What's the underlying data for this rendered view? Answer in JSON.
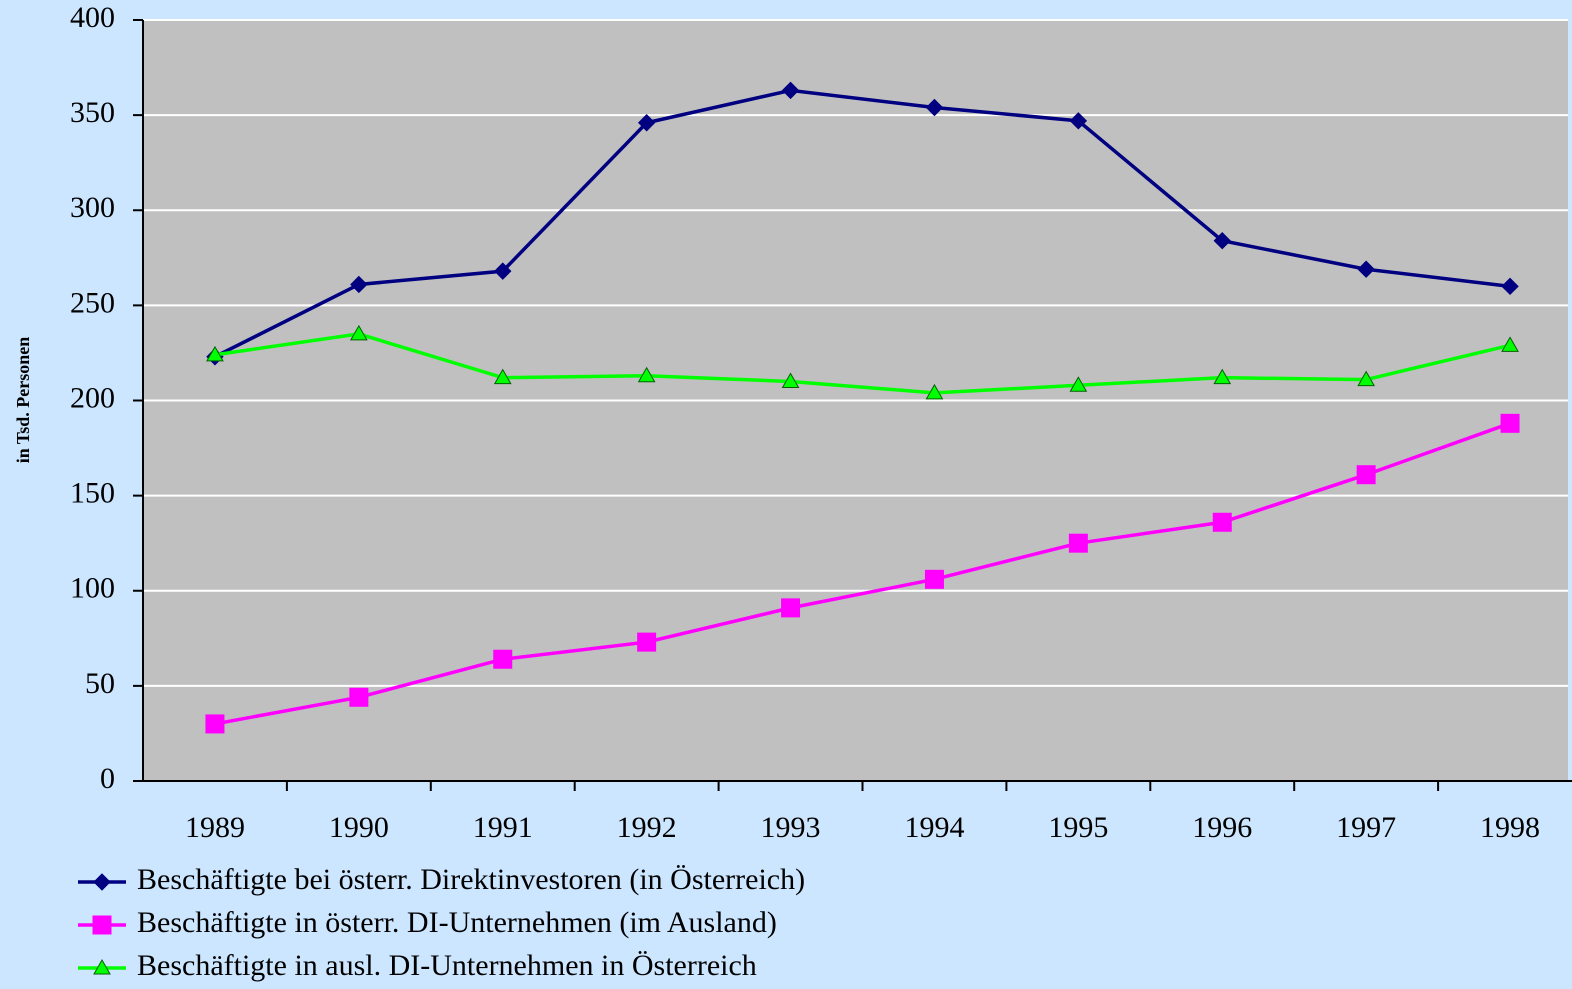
{
  "chart_data": {
    "type": "line",
    "y_label": "in Tsd. Personen",
    "categories": [
      "1989",
      "1990",
      "1991",
      "1992",
      "1993",
      "1994",
      "1995",
      "1996",
      "1997",
      "1998"
    ],
    "series": [
      {
        "name": "Beschäftigte bei österr. Direktinvestoren (in Österreich)",
        "color": "#000080",
        "marker": "diamond",
        "values": [
          223,
          261,
          268,
          346,
          363,
          354,
          347,
          284,
          269,
          260
        ]
      },
      {
        "name": "Beschäftigte in österr. DI-Unternehmen (im Ausland)",
        "color": "#ff00ff",
        "marker": "square",
        "values": [
          30,
          44,
          64,
          73,
          91,
          106,
          125,
          136,
          161,
          188
        ]
      },
      {
        "name": "Beschäftigte in ausl. DI-Unternehmen in Österreich",
        "color": "#00ff00",
        "marker": "triangle",
        "values": [
          224,
          235,
          212,
          213,
          210,
          204,
          208,
          212,
          211,
          229
        ]
      }
    ],
    "ylim": [
      0,
      400
    ],
    "yticks": [
      0,
      50,
      100,
      150,
      200,
      250,
      300,
      350,
      400
    ],
    "grid": true,
    "legend": "bottom-left"
  }
}
